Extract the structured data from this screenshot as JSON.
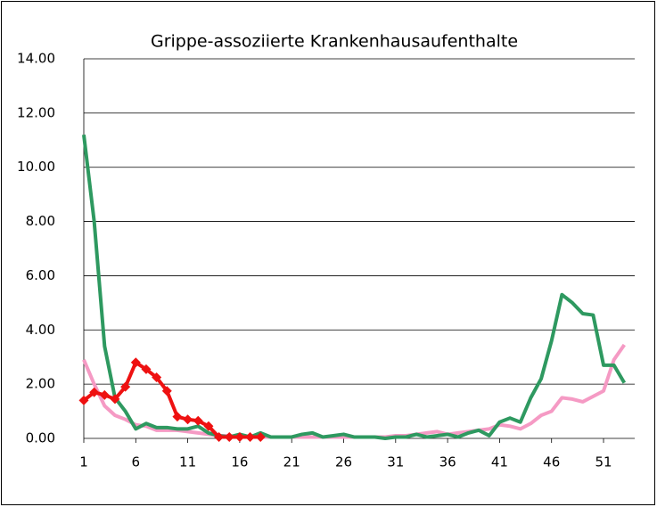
{
  "chart_data": {
    "type": "line",
    "title": "Grippe-assoziierte Krankenhausaufenthalte",
    "x": [
      1,
      2,
      3,
      4,
      5,
      6,
      7,
      8,
      9,
      10,
      11,
      12,
      13,
      14,
      15,
      16,
      17,
      18,
      19,
      20,
      21,
      22,
      23,
      24,
      25,
      26,
      27,
      28,
      29,
      30,
      31,
      32,
      33,
      34,
      35,
      36,
      37,
      38,
      39,
      40,
      41,
      42,
      43,
      44,
      45,
      46,
      47,
      48,
      49,
      50,
      51,
      52,
      53
    ],
    "xlim": [
      1,
      54
    ],
    "xticks": [
      1,
      6,
      11,
      16,
      21,
      26,
      31,
      36,
      41,
      46,
      51
    ],
    "ylim": [
      0,
      14
    ],
    "yticks": [
      {
        "value": 0,
        "label": "0.00"
      },
      {
        "value": 2,
        "label": "2.00"
      },
      {
        "value": 4,
        "label": "4.00"
      },
      {
        "value": 6,
        "label": "6.00"
      },
      {
        "value": 8,
        "label": "8.00"
      },
      {
        "value": 10,
        "label": "10.00"
      },
      {
        "value": 12,
        "label": "12.00"
      },
      {
        "value": 14,
        "label": "14.00"
      }
    ],
    "grid": true,
    "series": [
      {
        "color": "#f59ac4",
        "marker": false,
        "values": [
          2.9,
          2.0,
          1.2,
          0.85,
          0.7,
          0.5,
          0.45,
          0.3,
          0.3,
          0.3,
          0.25,
          0.2,
          0.15,
          0.1,
          0.1,
          0.05,
          0.05,
          0.05,
          0.05,
          0.05,
          0.05,
          0.05,
          0.05,
          0.05,
          0.05,
          0.05,
          0.05,
          0.05,
          0.05,
          0.05,
          0.1,
          0.1,
          0.15,
          0.2,
          0.25,
          0.15,
          0.2,
          0.25,
          0.3,
          0.35,
          0.5,
          0.45,
          0.35,
          0.55,
          0.85,
          1.0,
          1.5,
          1.45,
          1.35,
          1.55,
          1.75,
          2.9,
          3.45
        ]
      },
      {
        "color": "#2e9960",
        "marker": false,
        "values": [
          11.2,
          8.0,
          3.4,
          1.5,
          1.0,
          0.35,
          0.55,
          0.4,
          0.4,
          0.35,
          0.35,
          0.45,
          0.2,
          0.1,
          0.05,
          0.15,
          0.05,
          0.2,
          0.05,
          0.05,
          0.05,
          0.15,
          0.2,
          0.05,
          0.1,
          0.15,
          0.05,
          0.05,
          0.05,
          0.0,
          0.05,
          0.05,
          0.15,
          0.05,
          0.1,
          0.15,
          0.05,
          0.2,
          0.3,
          0.1,
          0.6,
          0.75,
          0.6,
          1.5,
          2.2,
          3.6,
          5.3,
          5.0,
          4.6,
          4.55,
          2.7,
          2.7,
          2.05
        ]
      },
      {
        "color": "#ee1111",
        "marker": true,
        "values": [
          1.4,
          1.7,
          1.6,
          1.45,
          1.9,
          2.8,
          2.55,
          2.25,
          1.75,
          0.8,
          0.7,
          0.65,
          0.45,
          0.05,
          0.05,
          0.05,
          0.05,
          0.05,
          null,
          null,
          null,
          null,
          null,
          null,
          null,
          null,
          null,
          null,
          null,
          null,
          null,
          null,
          null,
          null,
          null,
          null,
          null,
          null,
          null,
          null,
          null,
          null,
          null,
          null,
          null,
          null,
          null,
          null,
          null,
          null,
          null,
          null,
          null
        ]
      }
    ]
  }
}
